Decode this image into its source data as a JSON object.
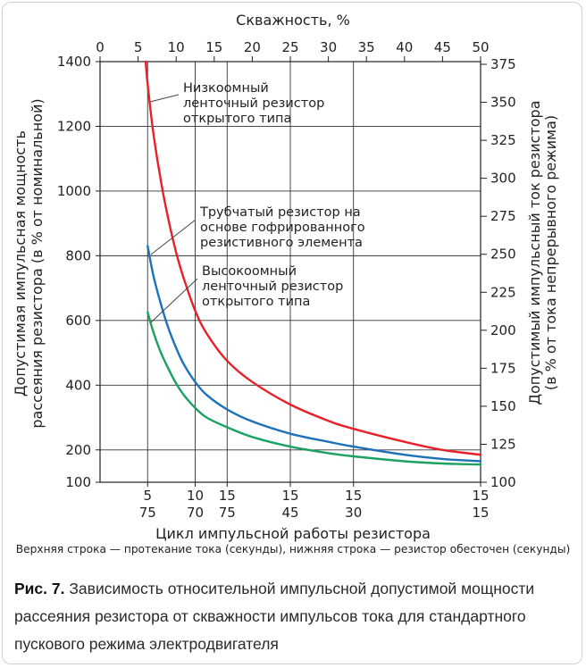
{
  "chart_data": {
    "type": "line",
    "title": "",
    "top_axis": {
      "label": "Скважность, %",
      "range": [
        0,
        50
      ],
      "ticks": [
        0,
        5,
        10,
        15,
        20,
        25,
        30,
        35,
        40,
        45,
        50
      ]
    },
    "left_axis": {
      "label_line1": "Допустимая импульсная мощность",
      "label_line2": "рассеяния резистора (в % от номинальной)",
      "range": [
        100,
        1400
      ],
      "ticks": [
        100,
        200,
        400,
        600,
        800,
        1000,
        1200,
        1400
      ]
    },
    "right_axis": {
      "label_line1": "Допустимый импульсный ток резистора",
      "label_line2": "(в % от тока непрерывного режима)",
      "ticks": [
        "100",
        "125",
        "150",
        "175",
        "200",
        "225",
        "250",
        "275",
        "300",
        "325",
        "350",
        "375"
      ]
    },
    "bottom_axis": {
      "label": "Цикл импульсной работы резистора",
      "note": "Верхняя строка — протекание тока (секунды), нижняя строка — резистор обесточен (секунды)",
      "pairs": [
        {
          "duty": 6.25,
          "top": "5",
          "bottom": "75"
        },
        {
          "duty": 12.5,
          "top": "10",
          "bottom": "70"
        },
        {
          "duty": 16.7,
          "top": "15",
          "bottom": "75"
        },
        {
          "duty": 25,
          "top": "15",
          "bottom": "45"
        },
        {
          "duty": 33.3,
          "top": "15",
          "bottom": "30"
        },
        {
          "duty": 50,
          "top": "15",
          "bottom": "15"
        }
      ]
    },
    "series": [
      {
        "name": "Низкоомный ленточный резистор открытого типа",
        "label_lines": [
          "Низкоомный",
          "ленточный резистор",
          "открытого типа"
        ],
        "color": "#e8202a",
        "x": [
          6,
          6.25,
          7,
          8,
          9,
          10,
          11,
          12.5,
          14,
          16.7,
          20,
          25,
          30,
          33.3,
          40,
          45,
          50
        ],
        "y": [
          1400,
          1330,
          1180,
          1030,
          910,
          810,
          730,
          630,
          560,
          475,
          410,
          340,
          290,
          265,
          225,
          200,
          185
        ]
      },
      {
        "name": "Трубчатый резистор на основе гофрированного резистивного элемента",
        "label_lines": [
          "Трубчатый резистор на",
          "основе гофрированного",
          "резистивного элемента"
        ],
        "color": "#1d71b8",
        "x": [
          6.25,
          7,
          8,
          9,
          10,
          11,
          12.5,
          14,
          16.7,
          20,
          25,
          30,
          33.3,
          40,
          45,
          50
        ],
        "y": [
          830,
          740,
          650,
          575,
          515,
          465,
          410,
          370,
          325,
          288,
          250,
          225,
          210,
          185,
          172,
          165
        ]
      },
      {
        "name": "Высокоомный ленточный резистор открытого типа",
        "label_lines": [
          "Высокоомный",
          "ленточный резистор",
          "открытого типа"
        ],
        "color": "#1aa260",
        "x": [
          6.25,
          7,
          8,
          9,
          10,
          11,
          12.5,
          14,
          16.7,
          20,
          25,
          30,
          33.3,
          40,
          45,
          50
        ],
        "y": [
          625,
          565,
          500,
          450,
          405,
          370,
          330,
          300,
          270,
          240,
          210,
          190,
          180,
          165,
          158,
          155
        ]
      }
    ]
  },
  "caption": {
    "figure_label": "Рис. 7.",
    "text": "Зависимость относительной импульсной допустимой мощности рассеяния резистора от скважности импульсов тока для стандартного пускового режима электродвигателя"
  }
}
